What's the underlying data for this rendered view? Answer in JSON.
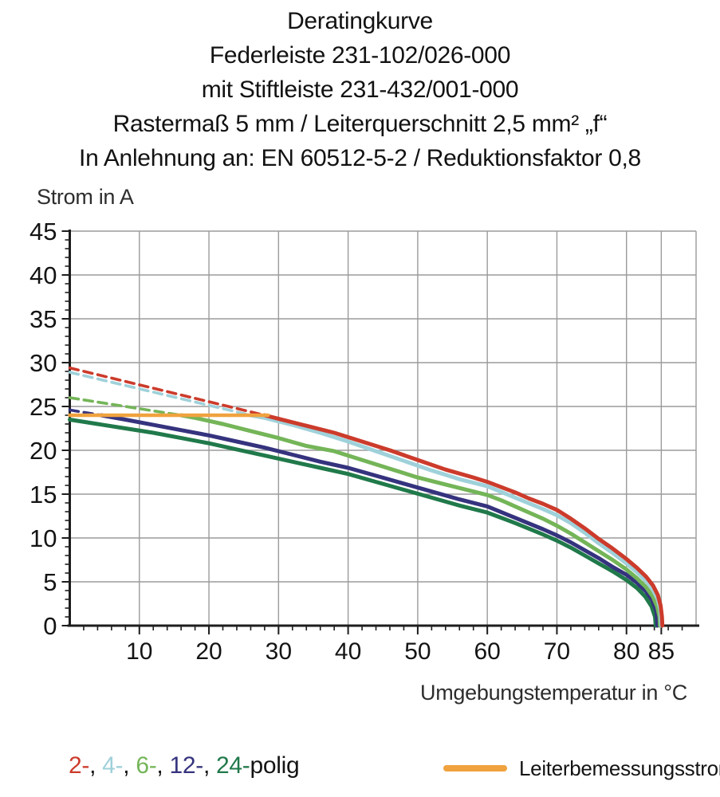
{
  "title_lines": [
    "Deratingkurve",
    "Federleiste 231-102/026-000",
    "mit Stiftleiste 231-432/001-000",
    "Rastermaß 5 mm / Leiterquerschnitt 2,5 mm² „f“",
    "In Anlehnung an: EN 60512-5-2 / Reduktionsfaktor 0,8"
  ],
  "colors": {
    "grid": "#9b9b9b",
    "axis": "#1d1d1d",
    "tick_text": "#141414",
    "background": "#ffffff"
  },
  "chart_data": {
    "type": "line",
    "title": "Deratingkurve",
    "xlabel": "Umgebungstemperatur in °C",
    "ylabel": "Strom in A",
    "xlim": [
      0,
      90
    ],
    "ylim": [
      0,
      45
    ],
    "grid": true,
    "legend_position": "bottom",
    "x_major_ticks": [
      10,
      20,
      30,
      40,
      50,
      60,
      70,
      80,
      85
    ],
    "x_minor_step": 2,
    "y_major_ticks": [
      0,
      5,
      10,
      15,
      20,
      25,
      30,
      35,
      40,
      45
    ],
    "y_minor_step": 1,
    "x_gridlines": [
      10,
      20,
      30,
      40,
      50,
      60,
      70,
      80,
      85,
      90
    ],
    "y_gridlines": [
      5,
      10,
      15,
      20,
      25,
      30,
      35,
      40,
      45
    ],
    "rated_current_A": 24,
    "rated_line": {
      "name": "Leiterbemessungsstrom",
      "color": "#f0a23e",
      "points": [
        [
          0,
          24
        ],
        [
          28.5,
          24
        ]
      ]
    },
    "series": [
      {
        "name": "2-polig",
        "color": "#cc3b2b",
        "dashed": [
          [
            0,
            29.4
          ],
          [
            28,
            24
          ]
        ],
        "solid": [
          [
            28,
            24
          ],
          [
            30,
            23.6
          ],
          [
            34,
            22.8
          ],
          [
            38,
            22.0
          ],
          [
            42,
            21.0
          ],
          [
            46,
            20.0
          ],
          [
            50,
            18.9
          ],
          [
            54,
            17.8
          ],
          [
            58,
            16.9
          ],
          [
            60,
            16.4
          ],
          [
            62,
            15.8
          ],
          [
            64,
            15.2
          ],
          [
            66,
            14.5
          ],
          [
            68,
            13.9
          ],
          [
            70,
            13.2
          ],
          [
            72,
            12.2
          ],
          [
            74,
            11.1
          ],
          [
            76,
            9.9
          ],
          [
            78,
            8.8
          ],
          [
            80,
            7.6
          ],
          [
            81.5,
            6.6
          ],
          [
            82.8,
            5.6
          ],
          [
            83.8,
            4.6
          ],
          [
            84.5,
            3.5
          ],
          [
            84.9,
            2.3
          ],
          [
            85.1,
            1.0
          ],
          [
            85.15,
            0
          ]
        ]
      },
      {
        "name": "4-polig",
        "color": "#9fd1da",
        "dashed": [
          [
            0,
            28.9
          ],
          [
            26,
            24
          ]
        ],
        "solid": [
          [
            26,
            24
          ],
          [
            28,
            23.7
          ],
          [
            32,
            22.9
          ],
          [
            36,
            22.0
          ],
          [
            40,
            21.0
          ],
          [
            44,
            19.9
          ],
          [
            48,
            18.8
          ],
          [
            52,
            17.7
          ],
          [
            56,
            16.7
          ],
          [
            60,
            15.9
          ],
          [
            64,
            14.6
          ],
          [
            68,
            13.3
          ],
          [
            70,
            12.6
          ],
          [
            72,
            11.7
          ],
          [
            74,
            10.6
          ],
          [
            76,
            9.4
          ],
          [
            78,
            8.3
          ],
          [
            80,
            7.1
          ],
          [
            81.5,
            6.1
          ],
          [
            82.8,
            5.1
          ],
          [
            83.8,
            4.1
          ],
          [
            84.5,
            3.0
          ],
          [
            84.85,
            1.8
          ],
          [
            85,
            0
          ]
        ]
      },
      {
        "name": "6-polig",
        "color": "#74b558",
        "dashed": [
          [
            0,
            26.0
          ],
          [
            16,
            24
          ]
        ],
        "solid": [
          [
            16,
            24
          ],
          [
            18,
            23.7
          ],
          [
            22,
            23.0
          ],
          [
            26,
            22.2
          ],
          [
            30,
            21.4
          ],
          [
            34,
            20.5
          ],
          [
            38,
            19.9
          ],
          [
            42,
            18.9
          ],
          [
            46,
            17.9
          ],
          [
            50,
            16.9
          ],
          [
            54,
            16.1
          ],
          [
            58,
            15.3
          ],
          [
            60,
            14.9
          ],
          [
            62,
            14.3
          ],
          [
            64,
            13.6
          ],
          [
            66,
            12.9
          ],
          [
            68,
            12.2
          ],
          [
            70,
            11.4
          ],
          [
            72,
            10.5
          ],
          [
            74,
            9.5
          ],
          [
            76,
            8.5
          ],
          [
            78,
            7.5
          ],
          [
            80,
            6.4
          ],
          [
            81.5,
            5.4
          ],
          [
            82.8,
            4.4
          ],
          [
            83.8,
            3.3
          ],
          [
            84.4,
            2.2
          ],
          [
            84.75,
            1.0
          ],
          [
            84.8,
            0
          ]
        ]
      },
      {
        "name": "12-polig",
        "color": "#35337e",
        "dashed": [
          [
            0,
            24.6
          ],
          [
            4.5,
            24
          ]
        ],
        "solid": [
          [
            4.5,
            24
          ],
          [
            8,
            23.5
          ],
          [
            12,
            22.9
          ],
          [
            16,
            22.3
          ],
          [
            20,
            21.7
          ],
          [
            24,
            21.0
          ],
          [
            28,
            20.3
          ],
          [
            32,
            19.5
          ],
          [
            36,
            18.7
          ],
          [
            40,
            18.0
          ],
          [
            44,
            17.1
          ],
          [
            48,
            16.2
          ],
          [
            52,
            15.3
          ],
          [
            56,
            14.4
          ],
          [
            60,
            13.6
          ],
          [
            64,
            12.3
          ],
          [
            68,
            11.0
          ],
          [
            70,
            10.3
          ],
          [
            72,
            9.5
          ],
          [
            74,
            8.6
          ],
          [
            76,
            7.7
          ],
          [
            78,
            6.7
          ],
          [
            80,
            5.8
          ],
          [
            81.5,
            4.9
          ],
          [
            82.8,
            3.9
          ],
          [
            83.7,
            2.9
          ],
          [
            84.3,
            1.6
          ],
          [
            84.45,
            0
          ]
        ]
      },
      {
        "name": "24-polig",
        "color": "#20794a",
        "solid": [
          [
            0,
            23.5
          ],
          [
            4,
            23.0
          ],
          [
            8,
            22.5
          ],
          [
            12,
            22.0
          ],
          [
            16,
            21.4
          ],
          [
            20,
            20.8
          ],
          [
            24,
            20.1
          ],
          [
            28,
            19.4
          ],
          [
            32,
            18.7
          ],
          [
            36,
            18.0
          ],
          [
            40,
            17.3
          ],
          [
            44,
            16.4
          ],
          [
            48,
            15.5
          ],
          [
            52,
            14.6
          ],
          [
            56,
            13.7
          ],
          [
            60,
            12.9
          ],
          [
            64,
            11.7
          ],
          [
            68,
            10.4
          ],
          [
            70,
            9.7
          ],
          [
            72,
            8.9
          ],
          [
            74,
            8.0
          ],
          [
            76,
            7.1
          ],
          [
            78,
            6.2
          ],
          [
            80,
            5.2
          ],
          [
            81.5,
            4.3
          ],
          [
            82.7,
            3.3
          ],
          [
            83.6,
            2.2
          ],
          [
            84.1,
            1.0
          ],
          [
            84.2,
            0
          ]
        ]
      }
    ]
  },
  "legend": {
    "poles": [
      {
        "label": "2-",
        "color": "#cc3b2b"
      },
      {
        "label": "4-",
        "color": "#9fd1da"
      },
      {
        "label": "6-",
        "color": "#74b558"
      },
      {
        "label": "12-",
        "color": "#35337e"
      },
      {
        "label": "24-",
        "color": "#20794a"
      }
    ],
    "separator": ", ",
    "suffix": "polig",
    "rated_label": "Leiterbemessungsstrom"
  }
}
